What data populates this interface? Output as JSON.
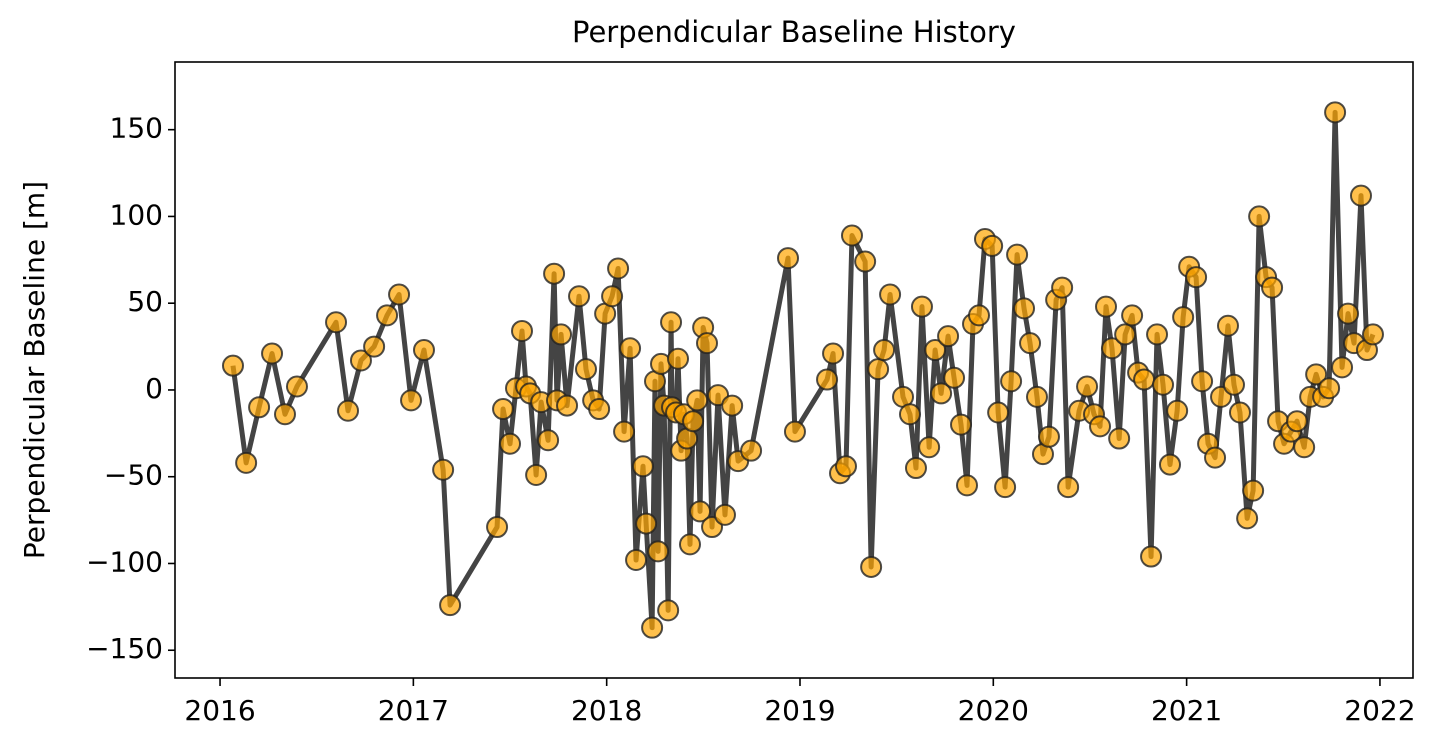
{
  "chart_data": {
    "type": "line",
    "title": "Perpendicular Baseline History",
    "ylabel": "Perpendicular Baseline [m]",
    "x": [
      2016.067,
      2016.135,
      2016.202,
      2016.269,
      2016.336,
      2016.398,
      2016.6,
      2016.662,
      2016.729,
      2016.797,
      2016.864,
      2016.926,
      2016.988,
      2017.055,
      2017.154,
      2017.19,
      2017.433,
      2017.464,
      2017.5,
      2017.531,
      2017.562,
      2017.583,
      2017.604,
      2017.635,
      2017.661,
      2017.697,
      2017.728,
      2017.743,
      2017.764,
      2017.795,
      2017.857,
      2017.893,
      2017.93,
      2017.961,
      2017.992,
      2018.028,
      2018.059,
      2018.09,
      2018.121,
      2018.152,
      2018.188,
      2018.204,
      2018.235,
      2018.25,
      2018.266,
      2018.281,
      2018.297,
      2018.318,
      2018.333,
      2018.338,
      2018.359,
      2018.369,
      2018.385,
      2018.4,
      2018.416,
      2018.431,
      2018.447,
      2018.468,
      2018.483,
      2018.499,
      2018.519,
      2018.545,
      2018.576,
      2018.612,
      2018.649,
      2018.68,
      2018.747,
      2018.938,
      2018.974,
      2019.14,
      2019.171,
      2019.207,
      2019.238,
      2019.269,
      2019.337,
      2019.368,
      2019.404,
      2019.435,
      2019.466,
      2019.533,
      2019.569,
      2019.6,
      2019.631,
      2019.668,
      2019.699,
      2019.73,
      2019.766,
      2019.797,
      2019.833,
      2019.864,
      2019.895,
      2019.926,
      2019.957,
      2019.994,
      2020.025,
      2020.061,
      2020.092,
      2020.123,
      2020.159,
      2020.19,
      2020.226,
      2020.257,
      2020.288,
      2020.325,
      2020.356,
      2020.387,
      2020.444,
      2020.485,
      2020.521,
      2020.552,
      2020.583,
      2020.614,
      2020.651,
      2020.682,
      2020.718,
      2020.749,
      2020.78,
      2020.816,
      2020.847,
      2020.878,
      2020.914,
      2020.951,
      2020.982,
      2021.013,
      2021.049,
      2021.08,
      2021.111,
      2021.147,
      2021.178,
      2021.214,
      2021.245,
      2021.276,
      2021.313,
      2021.344,
      2021.375,
      2021.411,
      2021.442,
      2021.473,
      2021.504,
      2021.54,
      2021.571,
      2021.608,
      2021.639,
      2021.67,
      2021.706,
      2021.737,
      2021.768,
      2021.804,
      2021.835,
      2021.866,
      2021.902,
      2021.933,
      2021.964
    ],
    "series": [
      {
        "color": "#ffa500",
        "line_color": "#444444",
        "values": [
          14,
          -42,
          -10,
          21,
          -14,
          2,
          39,
          -12,
          17,
          25,
          43,
          55,
          -6,
          23,
          -46,
          -124,
          -79,
          -11,
          -31,
          1,
          34,
          2,
          -2,
          -49,
          -7,
          -29,
          67,
          -6,
          32,
          -9,
          54,
          12,
          -6,
          -11,
          44,
          54,
          70,
          -24,
          24,
          -98,
          -44,
          -77,
          -137,
          5,
          -93,
          15,
          -9,
          -127,
          39,
          -10,
          -13,
          18,
          -35,
          -14,
          -28,
          -89,
          -18,
          -6,
          -70,
          36,
          27,
          -79,
          -3,
          -72,
          -9,
          -41,
          -35,
          76,
          -24,
          6,
          21,
          -48,
          -44,
          89,
          74,
          -102,
          12,
          23,
          55,
          -4,
          -14,
          -45,
          48,
          -33,
          23,
          -2,
          31,
          7,
          -20,
          -55,
          38,
          43,
          87,
          83,
          -13,
          -56,
          5,
          78,
          47,
          27,
          -4,
          -37,
          -27,
          52,
          59,
          -56,
          -12,
          2,
          -14,
          -21,
          48,
          24,
          -28,
          32,
          43,
          10,
          6,
          -96,
          32,
          3,
          -43,
          -12,
          42,
          71,
          65,
          5,
          -31,
          -39,
          -4,
          37,
          3,
          -13,
          -74,
          -58,
          100,
          65,
          59,
          -18,
          -31,
          -24,
          -18,
          -33,
          -4,
          9,
          -4,
          1,
          160,
          13,
          44,
          27,
          112,
          23,
          32
        ]
      }
    ],
    "xlim": [
      2015.767,
      2022.171
    ],
    "xticks": [
      2016,
      2017,
      2018,
      2019,
      2020,
      2021,
      2022
    ],
    "ylim": [
      -166,
      189
    ],
    "yticks": [
      {
        "value": -150,
        "label": "−150"
      },
      {
        "value": -100,
        "label": "−100"
      },
      {
        "value": -50,
        "label": "−50"
      },
      0,
      50,
      100,
      150
    ]
  }
}
